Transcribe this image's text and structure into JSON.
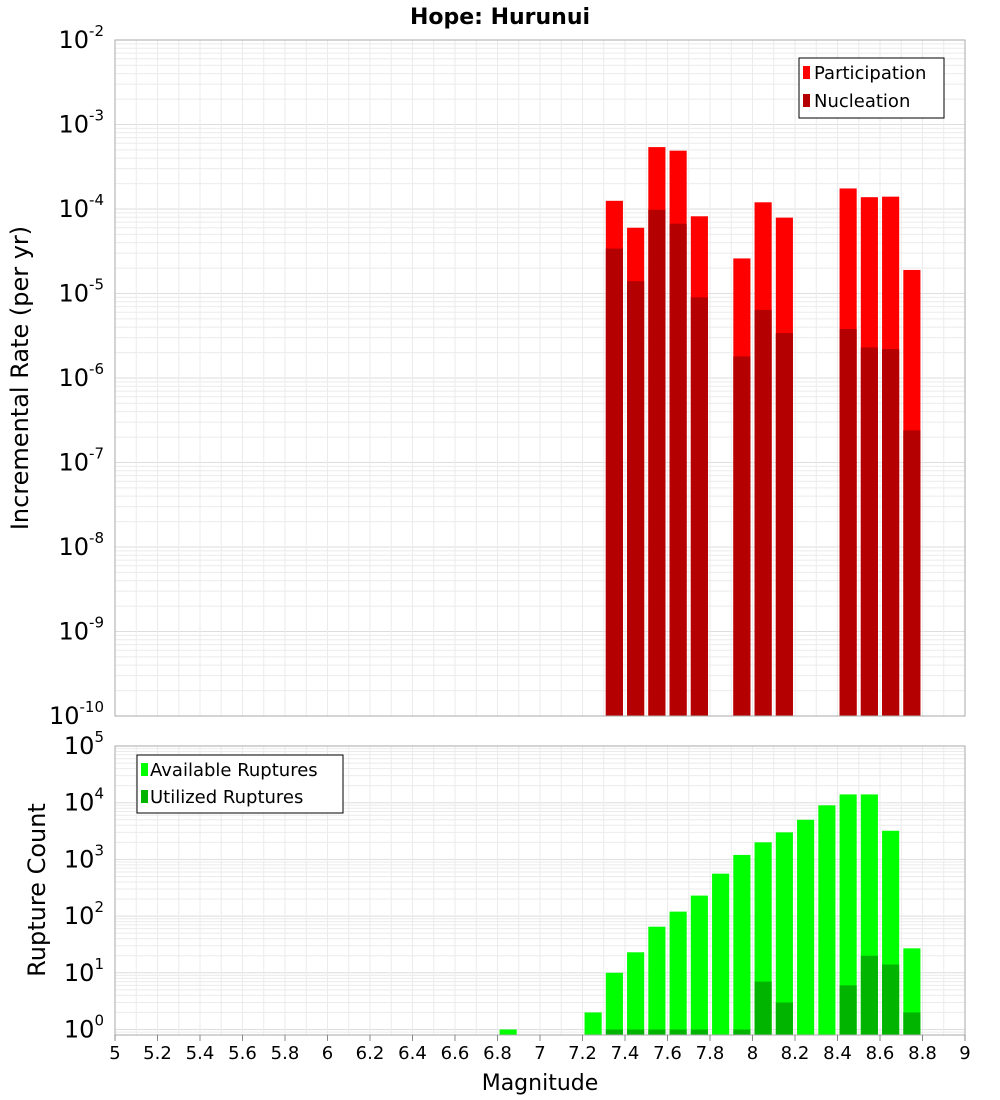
{
  "title": "Hope: Hurunui",
  "x_axis_label": "Magnitude",
  "x_ticks": [
    "5",
    "5.2",
    "5.4",
    "5.6",
    "5.8",
    "6",
    "6.2",
    "6.4",
    "6.6",
    "6.8",
    "7",
    "7.2",
    "7.4",
    "7.6",
    "7.8",
    "8",
    "8.2",
    "8.4",
    "8.6",
    "8.8",
    "9"
  ],
  "colors": {
    "participation": "#ff0000",
    "nucleation": "#b40000",
    "available": "#00ff00",
    "utilized": "#00b400",
    "grid": "#ebebeb",
    "frame": "#aaaaaa"
  },
  "chart_data": [
    {
      "type": "bar",
      "panel": "top",
      "title": "Hope: Hurunui",
      "xlabel": "Magnitude",
      "ylabel": "Incremental Rate (per yr)",
      "xlim": [
        5,
        9
      ],
      "ylim": [
        1e-10,
        0.01
      ],
      "yscale": "log",
      "ytick_base": "10",
      "ytick_exponents": [
        "-2",
        "-3",
        "-4",
        "-5",
        "-6",
        "-7",
        "-8",
        "-9",
        "-10"
      ],
      "grid": true,
      "legend_position": "top-right",
      "bar_width": 0.09,
      "x": [
        7.35,
        7.45,
        7.55,
        7.65,
        7.75,
        7.95,
        8.05,
        8.15,
        8.45,
        8.55,
        8.65,
        8.75
      ],
      "series": [
        {
          "name": "Participation",
          "color_key": "participation",
          "values": [
            0.000125,
            6e-05,
            0.00054,
            0.00049,
            8.2e-05,
            2.6e-05,
            0.00012,
            7.9e-05,
            0.000175,
            0.000138,
            0.00014,
            1.9e-05
          ]
        },
        {
          "name": "Nucleation",
          "color_key": "nucleation",
          "values": [
            3.4e-05,
            1.4e-05,
            9.8e-05,
            6.7e-05,
            9e-06,
            1.8e-06,
            6.4e-06,
            3.4e-06,
            3.8e-06,
            2.3e-06,
            2.2e-06,
            2.4e-07
          ]
        }
      ]
    },
    {
      "type": "bar",
      "panel": "bottom",
      "xlabel": "Magnitude",
      "ylabel": "Rupture Count",
      "xlim": [
        5,
        9
      ],
      "ylim": [
        0.8,
        100000.0
      ],
      "yscale": "log",
      "ytick_base": "10",
      "ytick_exponents": [
        "5",
        "4",
        "3",
        "2",
        "1",
        "0"
      ],
      "grid": true,
      "legend_position": "top-left",
      "bar_width": 0.09,
      "series": [
        {
          "name": "Available Ruptures",
          "color_key": "available",
          "x": [
            6.85,
            7.25,
            7.35,
            7.45,
            7.55,
            7.65,
            7.75,
            7.85,
            7.95,
            8.05,
            8.15,
            8.25,
            8.35,
            8.45,
            8.55,
            8.65,
            8.75
          ],
          "values": [
            1,
            2,
            10,
            23,
            65,
            120,
            230,
            560,
            1200,
            2000,
            3000,
            5000,
            9000,
            14000,
            14000,
            3200,
            27
          ]
        },
        {
          "name": "Utilized Ruptures",
          "color_key": "utilized",
          "x": [
            7.35,
            7.45,
            7.55,
            7.65,
            7.75,
            7.95,
            8.05,
            8.15,
            8.45,
            8.55,
            8.65,
            8.75
          ],
          "values": [
            1,
            1,
            1,
            1,
            1,
            1,
            7,
            3,
            6,
            20,
            14,
            2
          ]
        }
      ]
    }
  ]
}
